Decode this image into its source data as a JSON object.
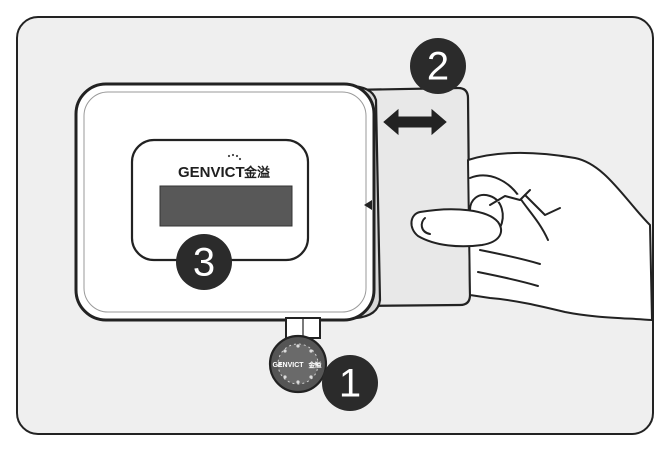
{
  "brand": {
    "name": "GENVICT",
    "chinese": "金溢"
  },
  "reader_brand": {
    "name": "GENVICT",
    "chinese": "金溢"
  },
  "steps": {
    "step1": "1",
    "step2": "2",
    "step3": "3"
  },
  "colors": {
    "outline": "#222222",
    "badge": "#2b2b2b",
    "display": "#555555",
    "card": "#e6e6e6",
    "device": "#ffffff",
    "background": "#efefef"
  },
  "icons": {
    "insert_direction": "double-arrow-icon",
    "slot_indicator": "triangle-left-icon",
    "hand": "hand-icon"
  }
}
